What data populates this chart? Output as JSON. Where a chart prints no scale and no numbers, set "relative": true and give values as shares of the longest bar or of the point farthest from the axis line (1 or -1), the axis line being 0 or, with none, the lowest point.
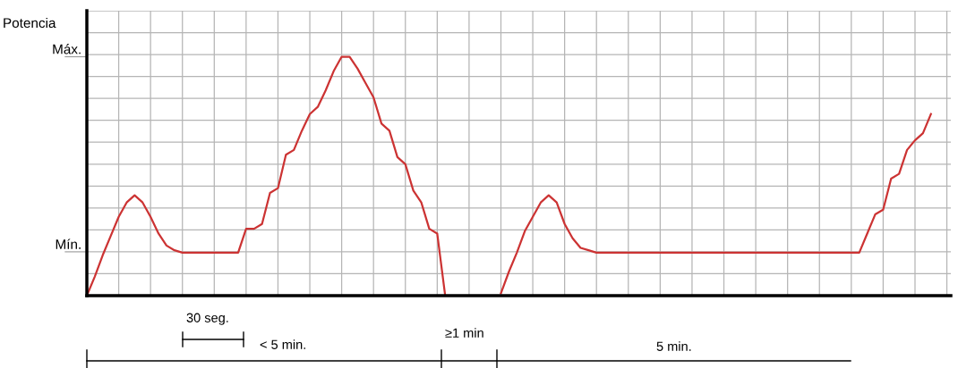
{
  "chart_data": {
    "type": "line",
    "ylabel": "Potencia",
    "relative": true,
    "categories": [
      null,
      null,
      null,
      null,
      null,
      null,
      null,
      null,
      null,
      null,
      null,
      null,
      null,
      null,
      null,
      null,
      null,
      null,
      null,
      null,
      null,
      null,
      null,
      null,
      null,
      null,
      null,
      null,
      null,
      null,
      null,
      null,
      null,
      null,
      null,
      null,
      null,
      null,
      null,
      null,
      null,
      null,
      null,
      null,
      null,
      null,
      null,
      null,
      null,
      null,
      null,
      null,
      null,
      null,
      null,
      null,
      null,
      null,
      null,
      null,
      null,
      null,
      null,
      null,
      null,
      null,
      null,
      null,
      null,
      null,
      null,
      null,
      null,
      null,
      null,
      null,
      null,
      null,
      null,
      null,
      null,
      null,
      null,
      null,
      null,
      null,
      null,
      null,
      null,
      null,
      null,
      null,
      null,
      null,
      null,
      null,
      null,
      null,
      null,
      null,
      null,
      null,
      null,
      null,
      null,
      null,
      null
    ],
    "series": [
      {
        "color": "#cc3333",
        "values": [
          0,
          0.08,
          0.17,
          0.25,
          0.33,
          0.39,
          0.42,
          0.39,
          0.33,
          0.26,
          0.21,
          0.19,
          0.18,
          0.18,
          0.18,
          0.18,
          0.18,
          0.18,
          0.18,
          0.18,
          0.28,
          0.28,
          0.3,
          0.43,
          0.45,
          0.59,
          0.61,
          0.69,
          0.76,
          0.79,
          0.86,
          0.94,
          1,
          1,
          0.95,
          0.89,
          0.83,
          0.72,
          0.69,
          0.58,
          0.55,
          0.44,
          0.39,
          0.28,
          0.26,
          0,
          null,
          null,
          null,
          null,
          null,
          null,
          null,
          null,
          null,
          null,
          null,
          null,
          null,
          null,
          null,
          null,
          null,
          null,
          null,
          null,
          null,
          null,
          null,
          null,
          null,
          null,
          null,
          null,
          null,
          null,
          null,
          null,
          null,
          null,
          null,
          null,
          null,
          null,
          null,
          null,
          null,
          null,
          null,
          null,
          null,
          null,
          null,
          null,
          null,
          null,
          null,
          null,
          null,
          null,
          null,
          null,
          null,
          null,
          null,
          null,
          null
        ]
      },
      {
        "color": "#cc3333",
        "values": [
          null,
          null,
          null,
          null,
          null,
          null,
          null,
          null,
          null,
          null,
          null,
          null,
          null,
          null,
          null,
          null,
          null,
          null,
          null,
          null,
          null,
          null,
          null,
          null,
          null,
          null,
          null,
          null,
          null,
          null,
          null,
          null,
          null,
          null,
          null,
          null,
          null,
          null,
          null,
          null,
          null,
          null,
          null,
          null,
          null,
          null,
          null,
          null,
          null,
          null,
          null,
          null,
          0.01,
          0.1,
          0.18,
          0.27,
          0.33,
          0.39,
          0.42,
          0.39,
          0.3,
          0.24,
          0.2,
          0.19,
          0.18,
          0.18,
          0.18,
          0.18,
          0.18,
          0.18,
          0.18,
          0.18,
          0.18,
          0.18,
          0.18,
          0.18,
          0.18,
          0.18,
          0.18,
          0.18,
          0.18,
          0.18,
          0.18,
          0.18,
          0.18,
          0.18,
          0.18,
          0.18,
          0.18,
          0.18,
          0.18,
          0.18,
          0.18,
          0.18,
          0.18,
          0.18,
          0.18,
          0.18,
          0.26,
          0.34,
          0.36,
          0.49,
          0.51,
          0.61,
          0.65,
          0.68,
          0.76
        ]
      }
    ],
    "grid": true,
    "marker": "none",
    "line_style": "solid",
    "annotations": [
      "Máx.",
      "Mín.",
      "30 seg.",
      "< 5 min.",
      "≥1 min",
      "5 min."
    ]
  }
}
